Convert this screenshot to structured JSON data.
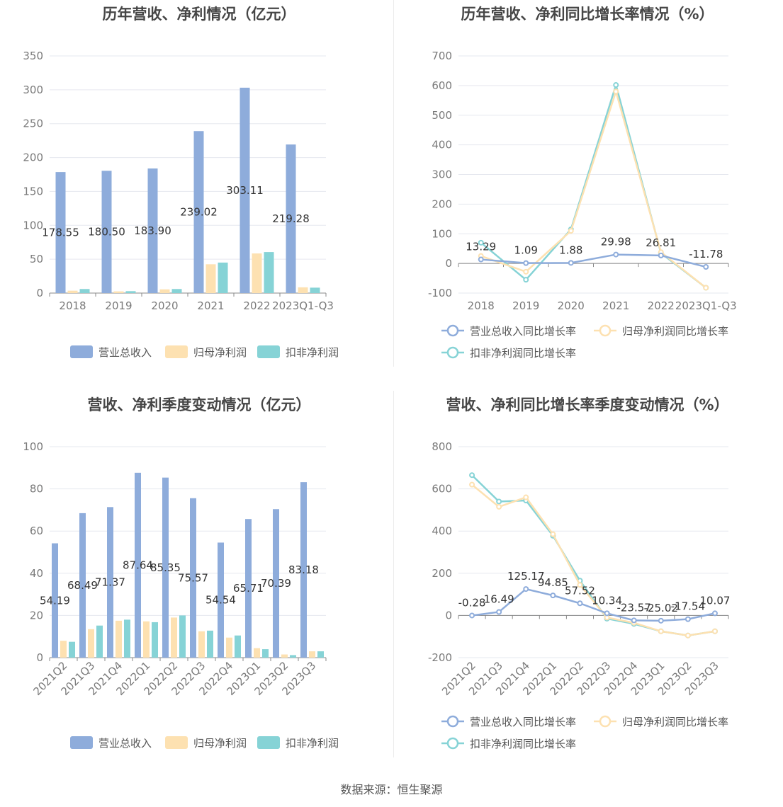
{
  "footer": "数据来源：恒生聚源",
  "colors": {
    "revenue": "#8eacdb",
    "net_profit": "#fde1b1",
    "deducted_profit": "#86d3d6",
    "grid": "#e6e8ef",
    "axis": "#888888"
  },
  "chart_data": [
    {
      "id": "annual_amount",
      "type": "bar",
      "title": "历年营收、净利情况（亿元）",
      "categories": [
        "2018",
        "2019",
        "2020",
        "2021",
        "2022",
        "2023Q1-Q3"
      ],
      "ylim": [
        0,
        350
      ],
      "yticks": [
        0,
        50,
        100,
        150,
        200,
        250,
        300,
        350
      ],
      "series": [
        {
          "name": "营业总收入",
          "values": [
            178.55,
            180.5,
            183.9,
            239.02,
            303.11,
            219.28
          ],
          "labels": [
            "178.55",
            "180.50",
            "183.90",
            "239.02",
            "303.11",
            "219.28"
          ]
        },
        {
          "name": "归母净利润",
          "values": [
            3.5,
            2.5,
            5.5,
            42.5,
            58.5,
            8.5
          ]
        },
        {
          "name": "扣非净利润",
          "values": [
            6.0,
            2.8,
            6.0,
            45.0,
            60.5,
            8.0
          ]
        }
      ],
      "grid": true,
      "legend": "bottom"
    },
    {
      "id": "annual_growth",
      "type": "line",
      "title": "历年营收、净利同比增长率情况（%）",
      "categories": [
        "2018",
        "2019",
        "2020",
        "2021",
        "2022",
        "2023Q1-Q3"
      ],
      "ylim": [
        -100,
        700
      ],
      "yticks": [
        -100,
        0,
        100,
        200,
        300,
        400,
        500,
        600,
        700
      ],
      "series": [
        {
          "name": "营业总收入同比增长率",
          "values": [
            13.29,
            1.09,
            1.88,
            29.98,
            26.81,
            -11.78
          ],
          "labels": [
            "13.29",
            "1.09",
            "1.88",
            "29.98",
            "26.81",
            "-11.78"
          ]
        },
        {
          "name": "归母净利润同比增长率",
          "values": [
            25,
            -28,
            110,
            580,
            38,
            -82
          ]
        },
        {
          "name": "扣非净利润同比增长率",
          "values": [
            70,
            -55,
            115,
            602,
            35,
            -82
          ]
        }
      ],
      "grid": true,
      "legend": "bottom"
    },
    {
      "id": "quarterly_amount",
      "type": "bar",
      "title": "营收、净利季度变动情况（亿元）",
      "categories": [
        "2021Q2",
        "2021Q3",
        "2021Q4",
        "2022Q1",
        "2022Q2",
        "2022Q3",
        "2022Q4",
        "2023Q1",
        "2023Q2",
        "2023Q3"
      ],
      "ylim": [
        0,
        100
      ],
      "yticks": [
        0,
        20,
        40,
        60,
        80,
        100
      ],
      "series": [
        {
          "name": "营业总收入",
          "values": [
            54.19,
            68.49,
            71.37,
            87.64,
            85.35,
            75.57,
            54.54,
            65.71,
            70.39,
            83.18
          ],
          "labels": [
            "54.19",
            "68.49",
            "71.37",
            "87.64",
            "85.35",
            "75.57",
            "54.54",
            "65.71",
            "70.39",
            "83.18"
          ]
        },
        {
          "name": "归母净利润",
          "values": [
            8.0,
            13.5,
            17.5,
            17.2,
            19.0,
            12.5,
            9.5,
            4.5,
            1.5,
            3.0
          ]
        },
        {
          "name": "扣非净利润",
          "values": [
            7.5,
            15.2,
            18.0,
            16.8,
            20.0,
            12.8,
            10.5,
            4.0,
            1.2,
            3.0
          ]
        }
      ],
      "grid": true,
      "legend": "bottom"
    },
    {
      "id": "quarterly_growth",
      "type": "line",
      "title": "营收、净利同比增长率季度变动情况（%）",
      "categories": [
        "2021Q2",
        "2021Q3",
        "2021Q4",
        "2022Q1",
        "2022Q2",
        "2022Q3",
        "2022Q4",
        "2023Q1",
        "2023Q2",
        "2023Q3"
      ],
      "ylim": [
        -200,
        800
      ],
      "yticks": [
        -200,
        0,
        200,
        400,
        600,
        800
      ],
      "series": [
        {
          "name": "营业总收入同比增长率",
          "values": [
            -0.28,
            16.49,
            125.17,
            94.85,
            57.52,
            10.34,
            -23.57,
            -25.02,
            -17.54,
            10.07
          ],
          "labels": [
            "-0.28",
            "16.49",
            "125.17",
            "94.85",
            "57.52",
            "10.34",
            "-23.57",
            "-25.02",
            "-17.54",
            "10.07"
          ]
        },
        {
          "name": "归母净利润同比增长率",
          "values": [
            620,
            515,
            560,
            385,
            145,
            -10,
            -35,
            -75,
            -95,
            -75
          ]
        },
        {
          "name": "扣非净利润同比增长率",
          "values": [
            665,
            540,
            545,
            378,
            165,
            -15,
            -40,
            -75,
            -95,
            -75
          ]
        }
      ],
      "grid": true,
      "legend": "bottom"
    }
  ]
}
